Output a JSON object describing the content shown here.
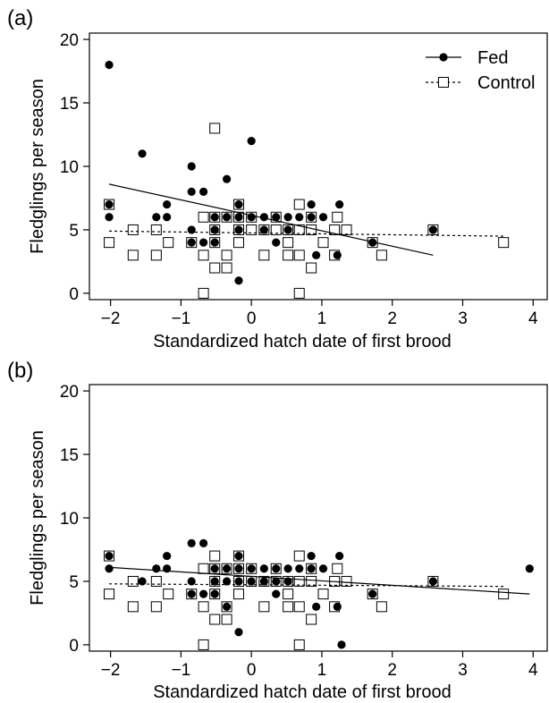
{
  "chart_data": [
    {
      "panel": "(a)",
      "type": "scatter",
      "xlabel": "Standardized hatch date of first brood",
      "ylabel": "Fledglings per season",
      "xlim": [
        -2.3,
        4.2
      ],
      "ylim": [
        -0.5,
        20.5
      ],
      "xticks": [
        -2,
        -1,
        0,
        1,
        2,
        3,
        4
      ],
      "yticks": [
        0,
        5,
        10,
        15,
        20
      ],
      "xtick_labels": [
        "−2",
        "−1",
        "0",
        "1",
        "2",
        "3",
        "4"
      ],
      "ytick_labels": [
        "0",
        "5",
        "10",
        "15",
        "20"
      ],
      "legend": {
        "position": "top-right",
        "entries": [
          "Fed",
          "Control"
        ]
      },
      "series": [
        {
          "name": "Fed",
          "marker": "filled-circle",
          "line_style": "solid",
          "points": [
            [
              -2.02,
              18
            ],
            [
              -2.02,
              7
            ],
            [
              -2.02,
              6
            ],
            [
              -1.55,
              11
            ],
            [
              -1.35,
              6
            ],
            [
              -1.2,
              7
            ],
            [
              -1.2,
              6
            ],
            [
              -0.85,
              10
            ],
            [
              -0.85,
              8
            ],
            [
              -0.85,
              5
            ],
            [
              -0.85,
              4
            ],
            [
              -0.68,
              8
            ],
            [
              -0.68,
              4
            ],
            [
              -0.52,
              6
            ],
            [
              -0.52,
              5
            ],
            [
              -0.52,
              4
            ],
            [
              -0.35,
              9
            ],
            [
              -0.35,
              6
            ],
            [
              -0.18,
              7
            ],
            [
              -0.18,
              6
            ],
            [
              -0.18,
              5
            ],
            [
              -0.18,
              1
            ],
            [
              0,
              12
            ],
            [
              0,
              6
            ],
            [
              0.18,
              6
            ],
            [
              0.18,
              5
            ],
            [
              0.35,
              6
            ],
            [
              0.35,
              4
            ],
            [
              0.52,
              6
            ],
            [
              0.52,
              5
            ],
            [
              0.68,
              6
            ],
            [
              0.85,
              7
            ],
            [
              0.85,
              6
            ],
            [
              0.92,
              3
            ],
            [
              1.02,
              6
            ],
            [
              1.25,
              7
            ],
            [
              1.22,
              3
            ],
            [
              1.72,
              4
            ],
            [
              2.58,
              5
            ]
          ],
          "fit": {
            "x": [
              -2.02,
              2.58
            ],
            "y": [
              8.6,
              3.0
            ]
          }
        },
        {
          "name": "Control",
          "marker": "open-square",
          "line_style": "dashed",
          "points": [
            [
              -2.02,
              7
            ],
            [
              -2.02,
              4
            ],
            [
              -1.68,
              5
            ],
            [
              -1.68,
              3
            ],
            [
              -1.35,
              5
            ],
            [
              -1.35,
              3
            ],
            [
              -1.18,
              4
            ],
            [
              -0.85,
              4
            ],
            [
              -0.68,
              6
            ],
            [
              -0.68,
              3
            ],
            [
              -0.68,
              0
            ],
            [
              -0.52,
              13
            ],
            [
              -0.52,
              6
            ],
            [
              -0.52,
              5
            ],
            [
              -0.52,
              4
            ],
            [
              -0.52,
              2
            ],
            [
              -0.35,
              6
            ],
            [
              -0.35,
              3
            ],
            [
              -0.35,
              2
            ],
            [
              -0.18,
              7
            ],
            [
              -0.18,
              6
            ],
            [
              -0.18,
              5
            ],
            [
              -0.18,
              4
            ],
            [
              0,
              6
            ],
            [
              0,
              5
            ],
            [
              0.18,
              5
            ],
            [
              0.18,
              3
            ],
            [
              0.35,
              6
            ],
            [
              0.35,
              5
            ],
            [
              0.52,
              5
            ],
            [
              0.52,
              4
            ],
            [
              0.52,
              3
            ],
            [
              0.68,
              7
            ],
            [
              0.68,
              5
            ],
            [
              0.68,
              3
            ],
            [
              0.68,
              0
            ],
            [
              0.85,
              6
            ],
            [
              0.85,
              5
            ],
            [
              0.85,
              2
            ],
            [
              1.02,
              4
            ],
            [
              1.18,
              5
            ],
            [
              1.18,
              3
            ],
            [
              1.22,
              6
            ],
            [
              1.35,
              5
            ],
            [
              1.72,
              4
            ],
            [
              1.85,
              3
            ],
            [
              2.58,
              5
            ],
            [
              3.58,
              4
            ]
          ],
          "fit": {
            "x": [
              -2.02,
              3.58
            ],
            "y": [
              4.9,
              4.5
            ]
          }
        }
      ]
    },
    {
      "panel": "(b)",
      "type": "scatter",
      "xlabel": "Standardized hatch date of first brood",
      "ylabel": "Fledglings per season",
      "xlim": [
        -2.3,
        4.2
      ],
      "ylim": [
        -0.5,
        20.5
      ],
      "xticks": [
        -2,
        -1,
        0,
        1,
        2,
        3,
        4
      ],
      "yticks": [
        0,
        5,
        10,
        15,
        20
      ],
      "xtick_labels": [
        "−2",
        "−1",
        "0",
        "1",
        "2",
        "3",
        "4"
      ],
      "ytick_labels": [
        "0",
        "5",
        "10",
        "15",
        "20"
      ],
      "series": [
        {
          "name": "Fed",
          "marker": "filled-circle",
          "line_style": "solid",
          "points": [
            [
              -2.02,
              7
            ],
            [
              -2.02,
              6
            ],
            [
              -1.55,
              5
            ],
            [
              -1.35,
              6
            ],
            [
              -1.2,
              7
            ],
            [
              -1.2,
              6
            ],
            [
              -0.85,
              8
            ],
            [
              -0.85,
              5
            ],
            [
              -0.85,
              4
            ],
            [
              -0.68,
              8
            ],
            [
              -0.68,
              4
            ],
            [
              -0.52,
              6
            ],
            [
              -0.52,
              5
            ],
            [
              -0.52,
              4
            ],
            [
              -0.35,
              6
            ],
            [
              -0.35,
              5
            ],
            [
              -0.35,
              3
            ],
            [
              -0.18,
              7
            ],
            [
              -0.18,
              6
            ],
            [
              -0.18,
              5
            ],
            [
              -0.18,
              1
            ],
            [
              0,
              6
            ],
            [
              0,
              5
            ],
            [
              0.18,
              6
            ],
            [
              0.18,
              5
            ],
            [
              0.35,
              6
            ],
            [
              0.35,
              5
            ],
            [
              0.35,
              4
            ],
            [
              0.52,
              6
            ],
            [
              0.52,
              5
            ],
            [
              0.68,
              6
            ],
            [
              0.85,
              7
            ],
            [
              0.85,
              6
            ],
            [
              0.92,
              3
            ],
            [
              1.02,
              6
            ],
            [
              1.25,
              7
            ],
            [
              1.22,
              3
            ],
            [
              1.28,
              0
            ],
            [
              1.72,
              4
            ],
            [
              2.58,
              5
            ],
            [
              3.95,
              6
            ]
          ],
          "fit": {
            "x": [
              -2.02,
              3.95
            ],
            "y": [
              6.1,
              4.0
            ]
          }
        },
        {
          "name": "Control",
          "marker": "open-square",
          "line_style": "dashed",
          "points": [
            [
              -2.02,
              7
            ],
            [
              -2.02,
              4
            ],
            [
              -1.68,
              5
            ],
            [
              -1.68,
              3
            ],
            [
              -1.35,
              5
            ],
            [
              -1.35,
              3
            ],
            [
              -1.18,
              4
            ],
            [
              -0.85,
              4
            ],
            [
              -0.68,
              6
            ],
            [
              -0.68,
              3
            ],
            [
              -0.68,
              0
            ],
            [
              -0.52,
              7
            ],
            [
              -0.52,
              6
            ],
            [
              -0.52,
              5
            ],
            [
              -0.52,
              4
            ],
            [
              -0.52,
              2
            ],
            [
              -0.35,
              6
            ],
            [
              -0.35,
              3
            ],
            [
              -0.35,
              2
            ],
            [
              -0.18,
              7
            ],
            [
              -0.18,
              6
            ],
            [
              -0.18,
              5
            ],
            [
              -0.18,
              4
            ],
            [
              0,
              6
            ],
            [
              0,
              5
            ],
            [
              0.18,
              5
            ],
            [
              0.18,
              3
            ],
            [
              0.35,
              6
            ],
            [
              0.35,
              5
            ],
            [
              0.52,
              5
            ],
            [
              0.52,
              4
            ],
            [
              0.52,
              3
            ],
            [
              0.68,
              7
            ],
            [
              0.68,
              5
            ],
            [
              0.68,
              3
            ],
            [
              0.68,
              0
            ],
            [
              0.85,
              6
            ],
            [
              0.85,
              5
            ],
            [
              0.85,
              2
            ],
            [
              1.02,
              4
            ],
            [
              1.18,
              5
            ],
            [
              1.18,
              3
            ],
            [
              1.22,
              6
            ],
            [
              1.35,
              5
            ],
            [
              1.72,
              4
            ],
            [
              1.85,
              3
            ],
            [
              2.58,
              5
            ],
            [
              3.58,
              4
            ]
          ],
          "fit": {
            "x": [
              -2.02,
              3.58
            ],
            "y": [
              4.8,
              4.6
            ]
          }
        }
      ]
    }
  ]
}
